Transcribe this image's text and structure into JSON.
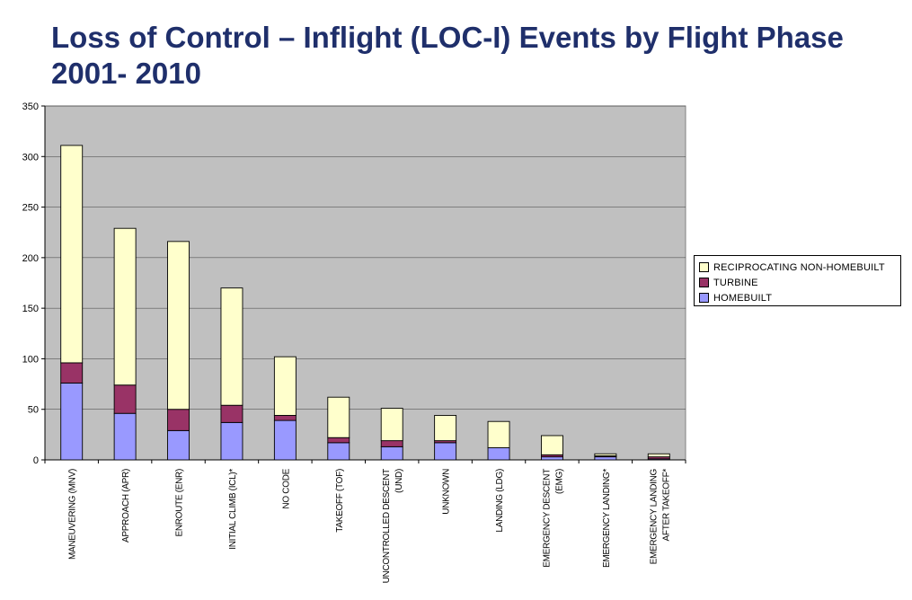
{
  "title": {
    "line1": "Loss of Control – Inflight (LOC-I) Events by Flight Phase",
    "line2": "2001- 2010"
  },
  "colors": {
    "plot_background": "#c0c0c0",
    "reciprocating": "#ffffcc",
    "turbine": "#993366",
    "homebuilt": "#9999ff",
    "title": "#1f2f6b"
  },
  "legend": {
    "items": [
      {
        "label": "RECIPROCATING NON-HOMEBUILT",
        "color": "#ffffcc"
      },
      {
        "label": "TURBINE",
        "color": "#993366"
      },
      {
        "label": "HOMEBUILT",
        "color": "#9999ff"
      }
    ]
  },
  "chart_data": {
    "type": "bar",
    "stacked": true,
    "title": "Loss of Control – Inflight (LOC-I) Events by Flight Phase 2001- 2010",
    "xlabel": "",
    "ylabel": "",
    "ylim": [
      0,
      350
    ],
    "yticks": [
      0,
      50,
      100,
      150,
      200,
      250,
      300,
      350
    ],
    "grid": true,
    "legend_position": "right",
    "categories": [
      [
        "MANEUVERING (MNV)"
      ],
      [
        "APPROACH (APR)"
      ],
      [
        "ENROUTE (ENR)"
      ],
      [
        "INITIAL CLIMB (ICL)*"
      ],
      [
        "NO CODE"
      ],
      [
        "TAKEOFF (TOF)"
      ],
      [
        "UNCONTROLLED DESCENT",
        "(UND)"
      ],
      [
        "UNKNOWN"
      ],
      [
        "LANDING (LDG)"
      ],
      [
        "EMERGENCY DESCENT",
        "(EMG)"
      ],
      [
        "EMERGENCY LANDING*"
      ],
      [
        "EMERGENCY LANDING",
        "AFTER TAKEOFF*"
      ]
    ],
    "series": [
      {
        "name": "HOMEBUILT",
        "color": "#9999ff",
        "values": [
          76,
          46,
          29,
          37,
          39,
          17,
          13,
          17,
          12,
          3,
          3,
          1
        ]
      },
      {
        "name": "TURBINE",
        "color": "#993366",
        "values": [
          20,
          28,
          21,
          17,
          5,
          5,
          6,
          2,
          0,
          2,
          1,
          2
        ]
      },
      {
        "name": "RECIPROCATING NON-HOMEBUILT",
        "color": "#ffffcc",
        "values": [
          215,
          155,
          166,
          116,
          58,
          40,
          32,
          25,
          26,
          19,
          2,
          3
        ]
      }
    ]
  }
}
